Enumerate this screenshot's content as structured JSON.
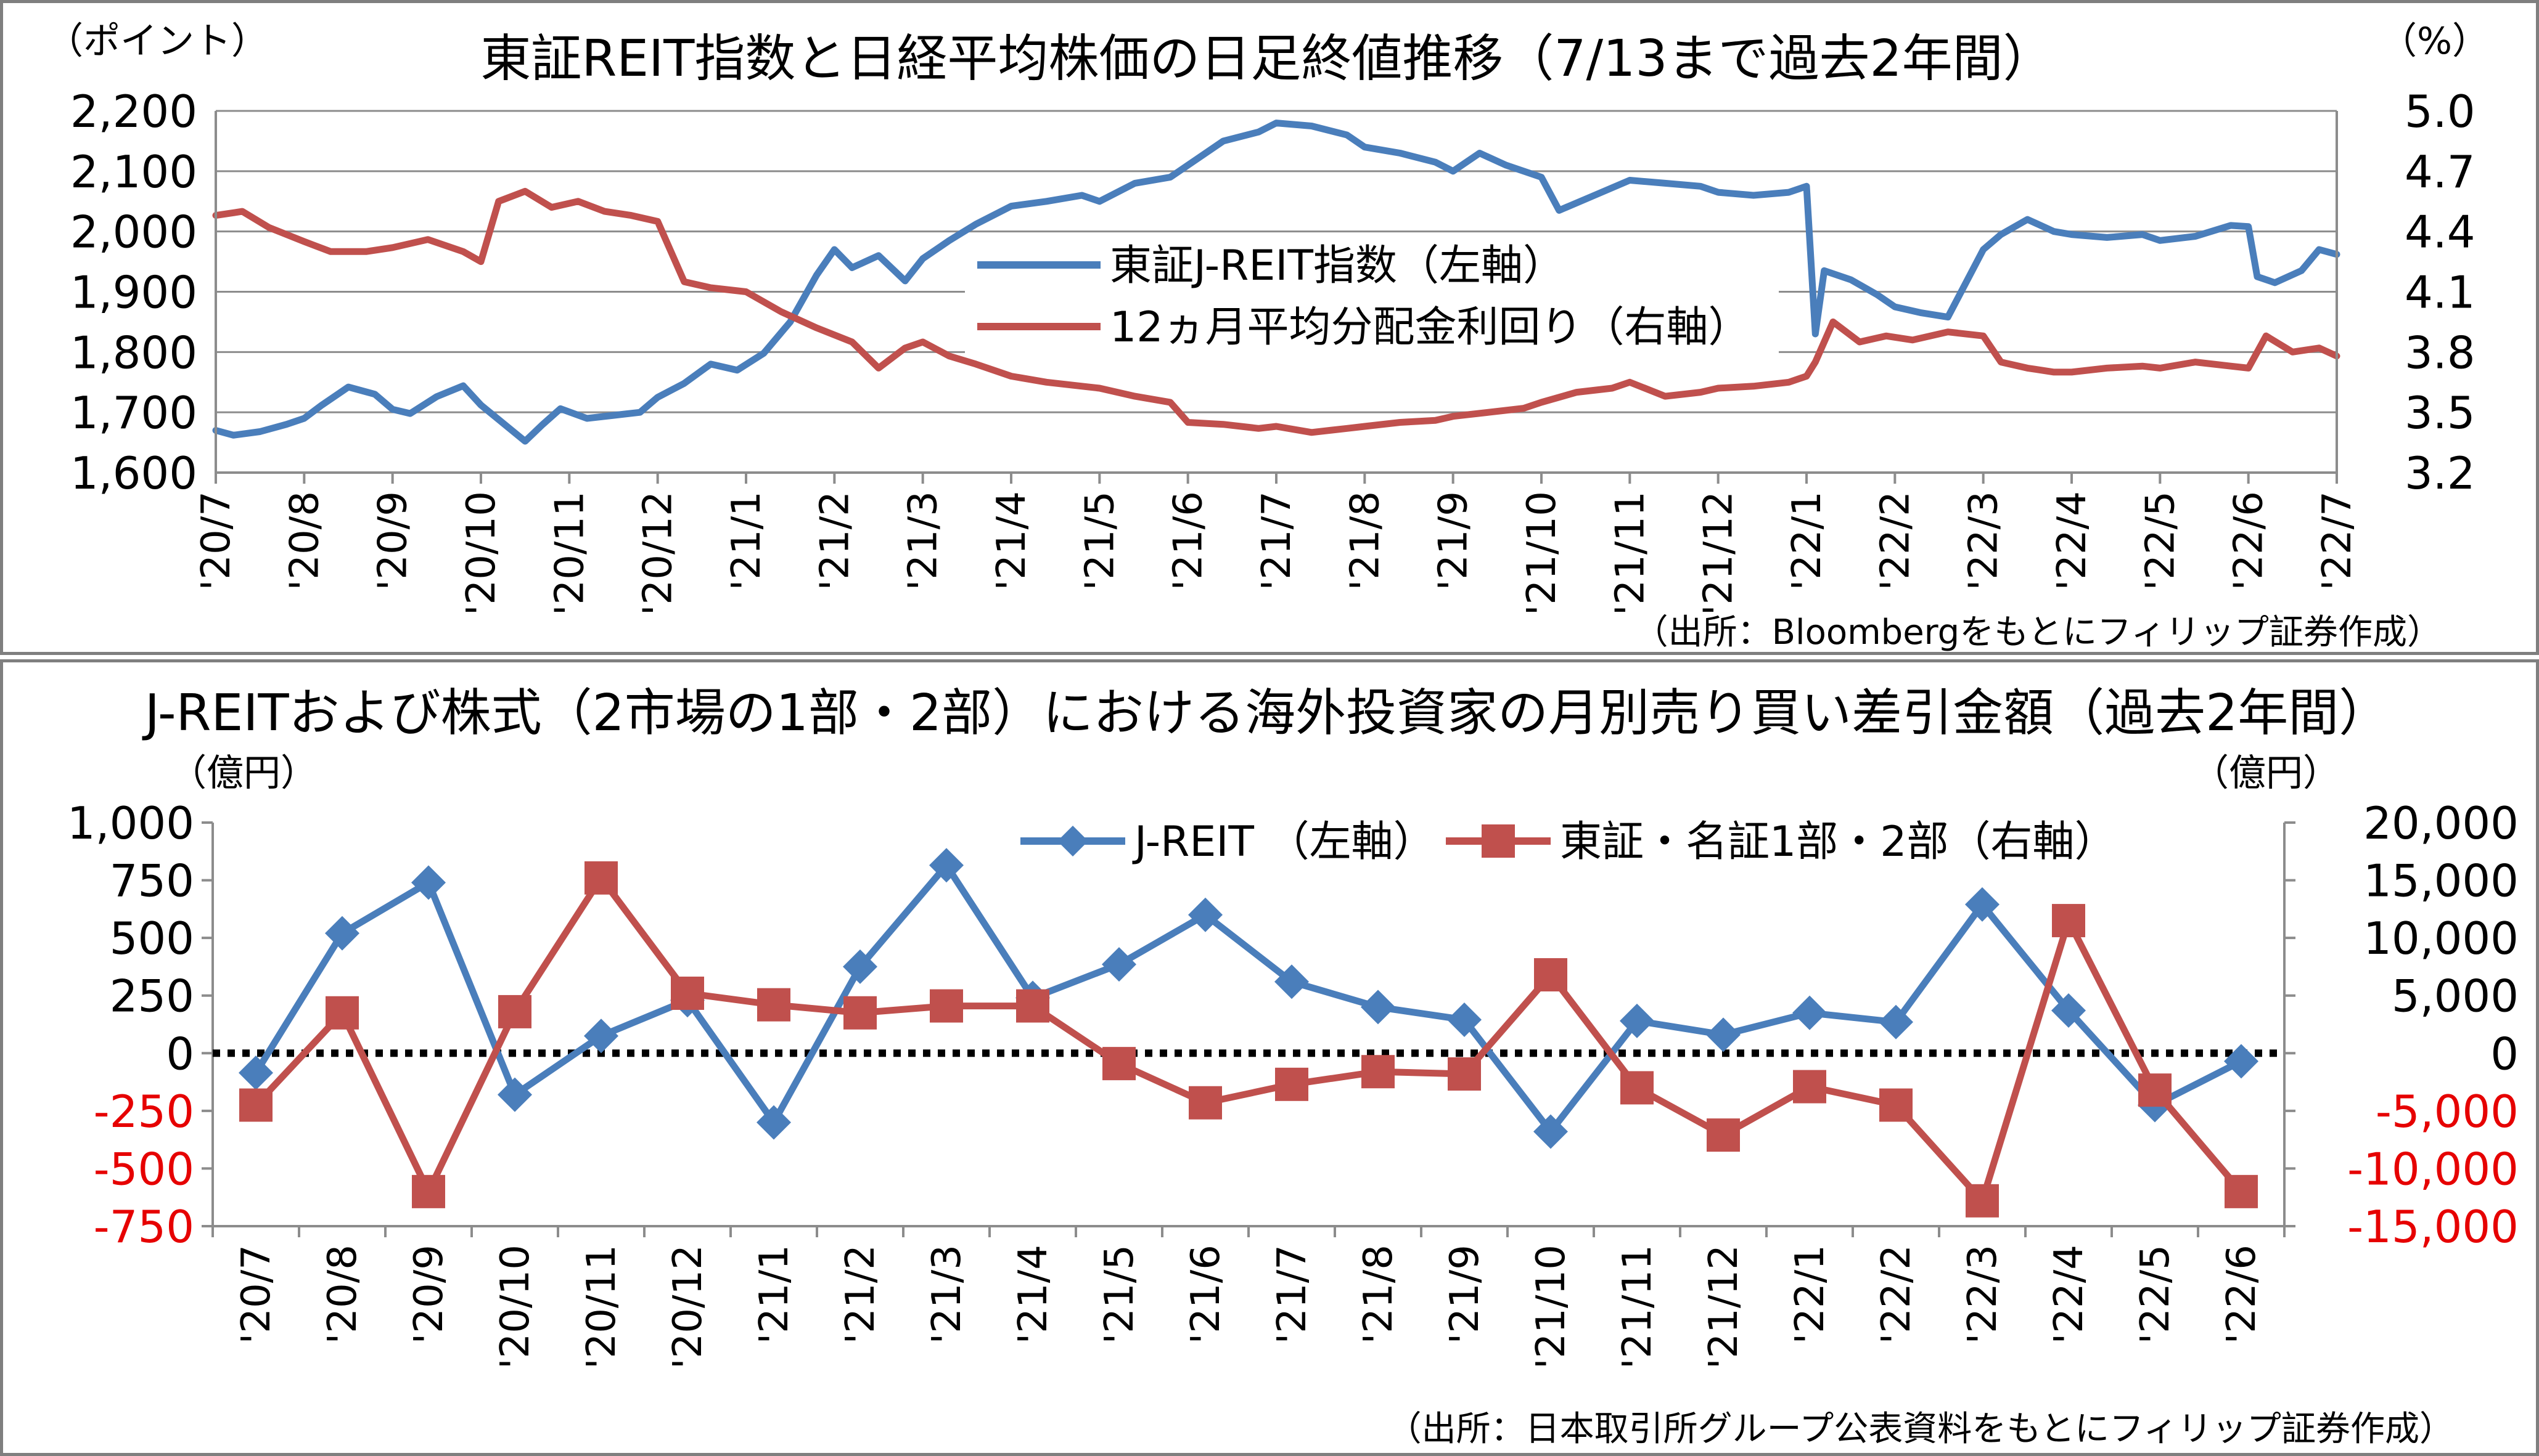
{
  "chart_data": [
    {
      "type": "line",
      "title": "東証REIT指数と日経平均株価の日足終値推移（7/13まで過去2年間）",
      "unit_left": "（ポイント）",
      "unit_right": "（%）",
      "source": "（出所：Bloombergをもとにフィリップ証券作成）",
      "categories": [
        "'20/7",
        "'20/8",
        "'20/9",
        "'20/10",
        "'20/11",
        "'20/12",
        "'21/1",
        "'21/2",
        "'21/3",
        "'21/4",
        "'21/5",
        "'21/6",
        "'21/7",
        "'21/8",
        "'21/9",
        "'21/10",
        "'21/11",
        "'21/12",
        "'22/1",
        "'22/2",
        "'22/3",
        "'22/4",
        "'22/5",
        "'22/6",
        "'22/7"
      ],
      "ylim_left": [
        1600,
        2200
      ],
      "yticks_left": [
        "1,600",
        "1,700",
        "1,800",
        "1,900",
        "2,000",
        "2,100",
        "2,200"
      ],
      "ylim_right": [
        3.2,
        5.0
      ],
      "yticks_right": [
        "3.2",
        "3.5",
        "3.8",
        "4.1",
        "4.4",
        "4.7",
        "5.0"
      ],
      "grid": true,
      "legend_position": "center",
      "series": [
        {
          "name": "東証J-REIT指数（左軸）",
          "axis": "left",
          "color": "#4a7ebb",
          "x": [
            0,
            0.2,
            0.5,
            0.8,
            1,
            1.2,
            1.5,
            1.8,
            2,
            2.2,
            2.5,
            2.8,
            3,
            3.2,
            3.5,
            3.7,
            3.9,
            4.2,
            4.5,
            4.8,
            5,
            5.3,
            5.6,
            5.9,
            6.2,
            6.5,
            6.8,
            7,
            7.2,
            7.5,
            7.8,
            8,
            8.3,
            8.6,
            9,
            9.4,
            9.8,
            10,
            10.4,
            10.8,
            11,
            11.4,
            11.8,
            12,
            12.4,
            12.8,
            13,
            13.4,
            13.8,
            14,
            14.3,
            14.6,
            15,
            15.2,
            15.6,
            16,
            16.4,
            16.8,
            17,
            17.4,
            17.8,
            18,
            18.1,
            18.2,
            18.5,
            18.8,
            19,
            19.3,
            19.6,
            20,
            20.2,
            20.5,
            20.8,
            21,
            21.4,
            21.8,
            22,
            22.4,
            22.8,
            23,
            23.1,
            23.3,
            23.6,
            23.8,
            24
          ],
          "y": [
            1670,
            1662,
            1668,
            1680,
            1690,
            1712,
            1742,
            1730,
            1705,
            1698,
            1726,
            1744,
            1712,
            1688,
            1652,
            1680,
            1706,
            1690,
            1695,
            1700,
            1725,
            1748,
            1780,
            1770,
            1798,
            1850,
            1928,
            1970,
            1940,
            1960,
            1918,
            1955,
            1985,
            2012,
            2042,
            2050,
            2060,
            2050,
            2080,
            2090,
            2110,
            2150,
            2165,
            2180,
            2175,
            2160,
            2140,
            2130,
            2115,
            2100,
            2130,
            2110,
            2090,
            2035,
            2060,
            2085,
            2080,
            2075,
            2065,
            2060,
            2065,
            2075,
            1830,
            1935,
            1920,
            1895,
            1875,
            1865,
            1858,
            1970,
            1995,
            2020,
            2000,
            1995,
            1990,
            1995,
            1985,
            1992,
            2010,
            2008,
            1925,
            1915,
            1935,
            1970,
            1962
          ]
        },
        {
          "name": "12ヵ月平均分配金利回り（右軸）",
          "axis": "right",
          "color": "#c0504d",
          "x": [
            0,
            0.3,
            0.6,
            1,
            1.3,
            1.7,
            2,
            2.4,
            2.8,
            3,
            3.2,
            3.5,
            3.8,
            4.1,
            4.4,
            4.7,
            5,
            5.3,
            5.6,
            6,
            6.4,
            6.8,
            7.2,
            7.5,
            7.8,
            8,
            8.3,
            8.6,
            9,
            9.4,
            9.8,
            10,
            10.4,
            10.8,
            11,
            11.4,
            11.8,
            12,
            12.4,
            12.8,
            13,
            13.4,
            13.8,
            14,
            14.4,
            14.8,
            15,
            15.4,
            15.8,
            16,
            16.4,
            16.8,
            17,
            17.4,
            17.8,
            18,
            18.1,
            18.3,
            18.6,
            18.9,
            19.2,
            19.6,
            20,
            20.2,
            20.5,
            20.8,
            21,
            21.4,
            21.8,
            22,
            22.4,
            22.8,
            23,
            23.2,
            23.5,
            23.8,
            24
          ],
          "y": [
            4.48,
            4.5,
            4.42,
            4.35,
            4.3,
            4.3,
            4.32,
            4.36,
            4.3,
            4.25,
            4.55,
            4.6,
            4.52,
            4.55,
            4.5,
            4.48,
            4.45,
            4.15,
            4.12,
            4.1,
            4.0,
            3.92,
            3.85,
            3.72,
            3.82,
            3.85,
            3.78,
            3.74,
            3.68,
            3.65,
            3.63,
            3.62,
            3.58,
            3.55,
            3.45,
            3.44,
            3.42,
            3.43,
            3.4,
            3.42,
            3.43,
            3.45,
            3.46,
            3.48,
            3.5,
            3.52,
            3.55,
            3.6,
            3.62,
            3.65,
            3.58,
            3.6,
            3.62,
            3.63,
            3.65,
            3.68,
            3.75,
            3.95,
            3.85,
            3.88,
            3.86,
            3.9,
            3.88,
            3.75,
            3.72,
            3.7,
            3.7,
            3.72,
            3.73,
            3.72,
            3.75,
            3.73,
            3.72,
            3.88,
            3.8,
            3.82,
            3.78
          ]
        }
      ]
    },
    {
      "type": "line",
      "title": "J-REITおよび株式（2市場の1部・2部）における海外投資家の月別売り買い差引金額（過去2年間）",
      "unit_left": "（億円）",
      "unit_right": "（億円）",
      "source": "（出所：日本取引所グループ公表資料をもとにフィリップ証券作成）",
      "categories": [
        "'20/7",
        "'20/8",
        "'20/9",
        "'20/10",
        "'20/11",
        "'20/12",
        "'21/1",
        "'21/2",
        "'21/3",
        "'21/4",
        "'21/5",
        "'21/6",
        "'21/7",
        "'21/8",
        "'21/9",
        "'21/10",
        "'21/11",
        "'21/12",
        "'22/1",
        "'22/2",
        "'22/3",
        "'22/4",
        "'22/5",
        "'22/6"
      ],
      "ylim_left": [
        -750,
        1000
      ],
      "yticks_left": [
        "-750",
        "-500",
        "-250",
        "0",
        "250",
        "500",
        "750",
        "1,000"
      ],
      "ylim_right": [
        -15000,
        20000
      ],
      "yticks_right": [
        "-15,000",
        "-10,000",
        "-5,000",
        "0",
        "5,000",
        "10,000",
        "15,000",
        "20,000"
      ],
      "zero_line": "dotted",
      "legend_position": "top-right",
      "series": [
        {
          "name": "J-REIT （左軸）",
          "axis": "left",
          "color": "#4a7ebb",
          "marker": "diamond",
          "values": [
            -85,
            520,
            740,
            -180,
            75,
            230,
            -300,
            375,
            815,
            240,
            385,
            600,
            310,
            200,
            145,
            -340,
            140,
            80,
            175,
            135,
            645,
            185,
            -225,
            -35
          ]
        },
        {
          "name": "東証・名証1部・2部（右軸）",
          "axis": "right",
          "color": "#c0504d",
          "marker": "square",
          "values": [
            -4500,
            3500,
            -12000,
            3600,
            15200,
            5200,
            4200,
            3500,
            4100,
            4100,
            -900,
            -4300,
            -2700,
            -1600,
            -1800,
            6800,
            -3000,
            -7100,
            -2900,
            -4500,
            -12800,
            11500,
            -3200,
            -12000
          ]
        }
      ]
    }
  ]
}
